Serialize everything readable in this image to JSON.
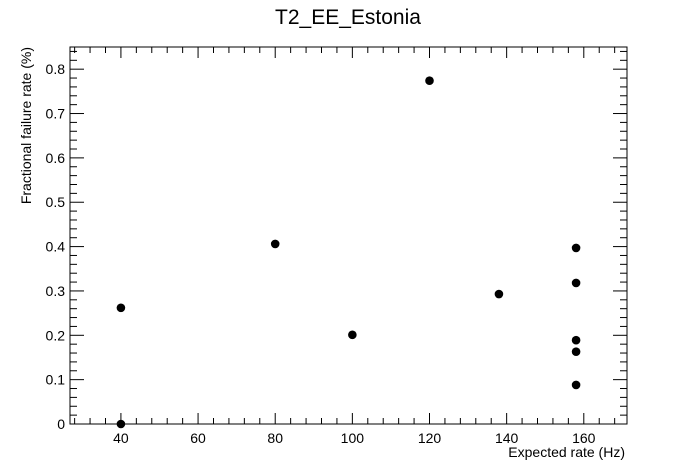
{
  "chart_data": {
    "type": "scatter",
    "title": "T2_EE_Estonia",
    "xlabel": "Expected rate (Hz)",
    "ylabel": "Fractional failure rate (%)",
    "xlim": [
      26.8,
      171.2
    ],
    "ylim": [
      0,
      0.85
    ],
    "xticks": [
      40,
      60,
      80,
      100,
      120,
      140,
      160
    ],
    "yticks": [
      0,
      0.1,
      0.2,
      0.3,
      0.4,
      0.5,
      0.6,
      0.7,
      0.8
    ],
    "xtick_labels": [
      "40",
      "60",
      "80",
      "100",
      "120",
      "140",
      "160"
    ],
    "ytick_labels": [
      "0",
      "0.1",
      "0.2",
      "0.3",
      "0.4",
      "0.5",
      "0.6",
      "0.7",
      "0.8"
    ],
    "grid": false,
    "legend": "none",
    "marker_color": "#000000",
    "points": [
      {
        "x": 40,
        "y": 0.262
      },
      {
        "x": 40,
        "y": 0.0
      },
      {
        "x": 80,
        "y": 0.406
      },
      {
        "x": 100,
        "y": 0.201
      },
      {
        "x": 120,
        "y": 0.774
      },
      {
        "x": 138,
        "y": 0.293
      },
      {
        "x": 158,
        "y": 0.397
      },
      {
        "x": 158,
        "y": 0.318
      },
      {
        "x": 158,
        "y": 0.189
      },
      {
        "x": 158,
        "y": 0.163
      },
      {
        "x": 158,
        "y": 0.088
      }
    ]
  }
}
